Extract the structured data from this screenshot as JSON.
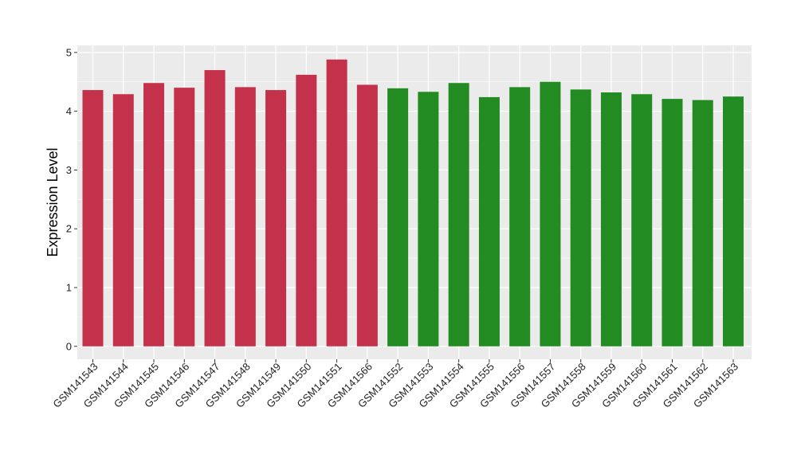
{
  "chart_data": {
    "type": "bar",
    "title": "",
    "xlabel": "",
    "ylabel": "Expression Level",
    "ylim": [
      -0.22,
      5.12
    ],
    "yticks": [
      0,
      1,
      2,
      3,
      4,
      5
    ],
    "grid": true,
    "legend": "none",
    "categories": [
      "GSM141543",
      "GSM141544",
      "GSM141545",
      "GSM141546",
      "GSM141547",
      "GSM141548",
      "GSM141549",
      "GSM141550",
      "GSM141551",
      "GSM141566",
      "GSM141552",
      "GSM141553",
      "GSM141554",
      "GSM141555",
      "GSM141556",
      "GSM141557",
      "GSM141558",
      "GSM141559",
      "GSM141560",
      "GSM141561",
      "GSM141562",
      "GSM141563"
    ],
    "values": [
      4.36,
      4.29,
      4.48,
      4.4,
      4.7,
      4.41,
      4.36,
      4.62,
      4.88,
      4.45,
      4.39,
      4.33,
      4.48,
      4.24,
      4.41,
      4.5,
      4.37,
      4.32,
      4.29,
      4.21,
      4.19,
      4.25
    ],
    "bar_colors": [
      "#c4314b",
      "#c4314b",
      "#c4314b",
      "#c4314b",
      "#c4314b",
      "#c4314b",
      "#c4314b",
      "#c4314b",
      "#c4314b",
      "#c4314b",
      "#228b22",
      "#228b22",
      "#228b22",
      "#228b22",
      "#228b22",
      "#228b22",
      "#228b22",
      "#228b22",
      "#228b22",
      "#228b22",
      "#228b22",
      "#228b22"
    ],
    "panel_color": "#ebebeb",
    "grid_color": "#ffffff"
  }
}
